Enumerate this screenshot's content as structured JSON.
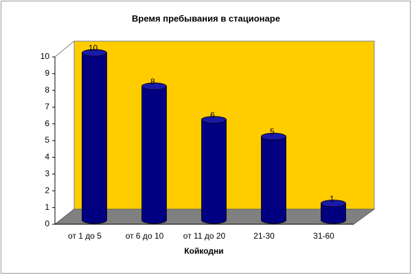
{
  "chart_data": {
    "type": "bar",
    "title": "Время пребывания в стационаре",
    "x_label": "Койкодни",
    "categories": [
      "от 1 до 5",
      "от 6 до 10",
      "от 11 до 20",
      "21-30",
      "31-60"
    ],
    "values": [
      10,
      8,
      6,
      5,
      1
    ],
    "color": "#000080",
    "ylim": [
      0,
      10
    ],
    "yticks": [
      0,
      1,
      2,
      3,
      4,
      5,
      6,
      7,
      8,
      9,
      10
    ]
  }
}
